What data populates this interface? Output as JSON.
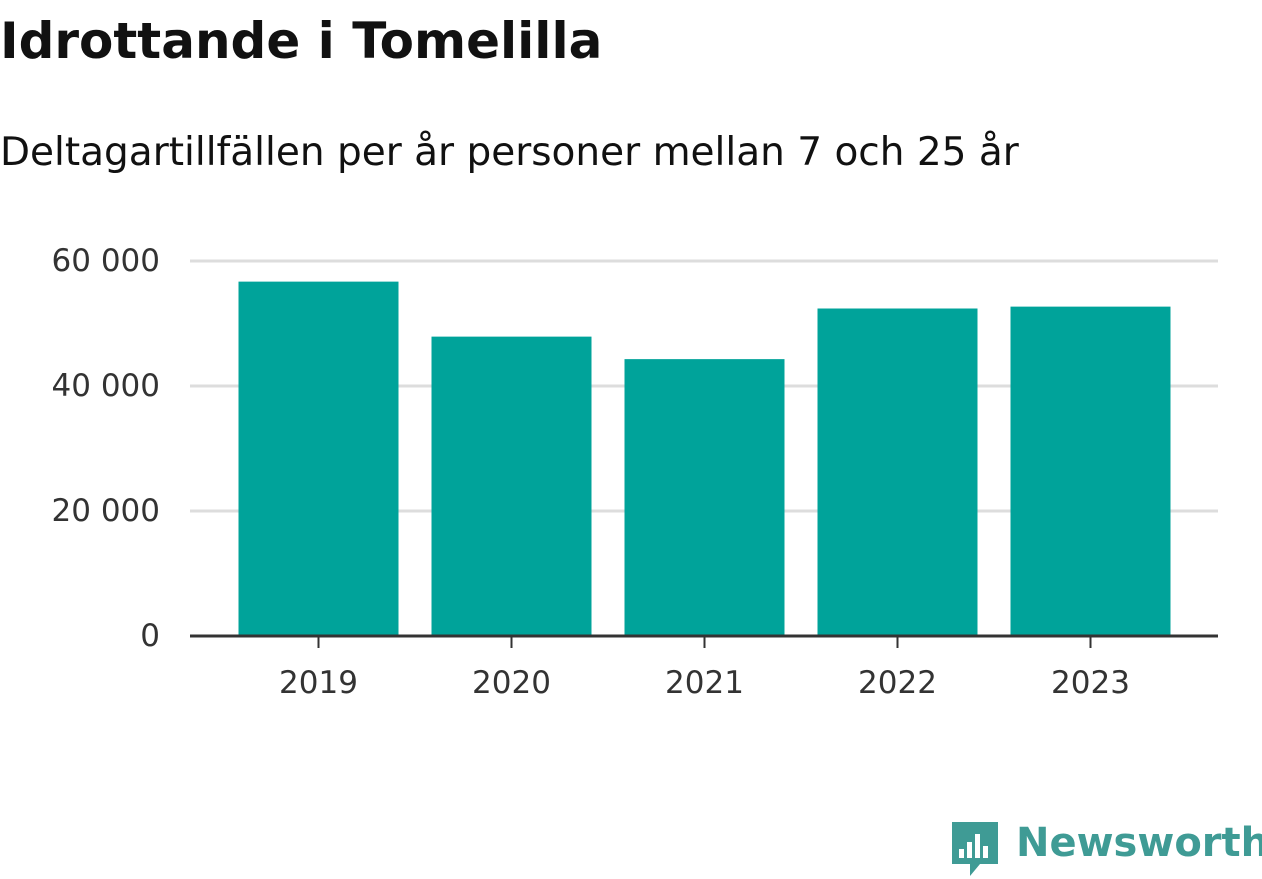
{
  "chart_data": {
    "type": "bar",
    "title": "Idrottande i Tomelilla",
    "subtitle": "Deltagartillfällen per år personer mellan 7 och 25 år",
    "categories": [
      "2019",
      "2020",
      "2021",
      "2022",
      "2023"
    ],
    "values": [
      56700,
      47900,
      44300,
      52400,
      52700
    ],
    "ylim": [
      0,
      60000
    ],
    "yticks": [
      0,
      20000,
      40000,
      60000
    ],
    "ytick_labels": [
      "0",
      "20 000",
      "40 000",
      "60 000"
    ],
    "xlabel": "",
    "ylabel": "",
    "grid": true,
    "colors": {
      "bar": "#00a39a",
      "grid": "#dddddd",
      "axis": "#333333",
      "text": "#111111",
      "tick_text": "#333333"
    }
  },
  "brand": {
    "name": "Newsworthy",
    "icon": "newsworthy-logo-icon",
    "color": "#3f9b95"
  }
}
